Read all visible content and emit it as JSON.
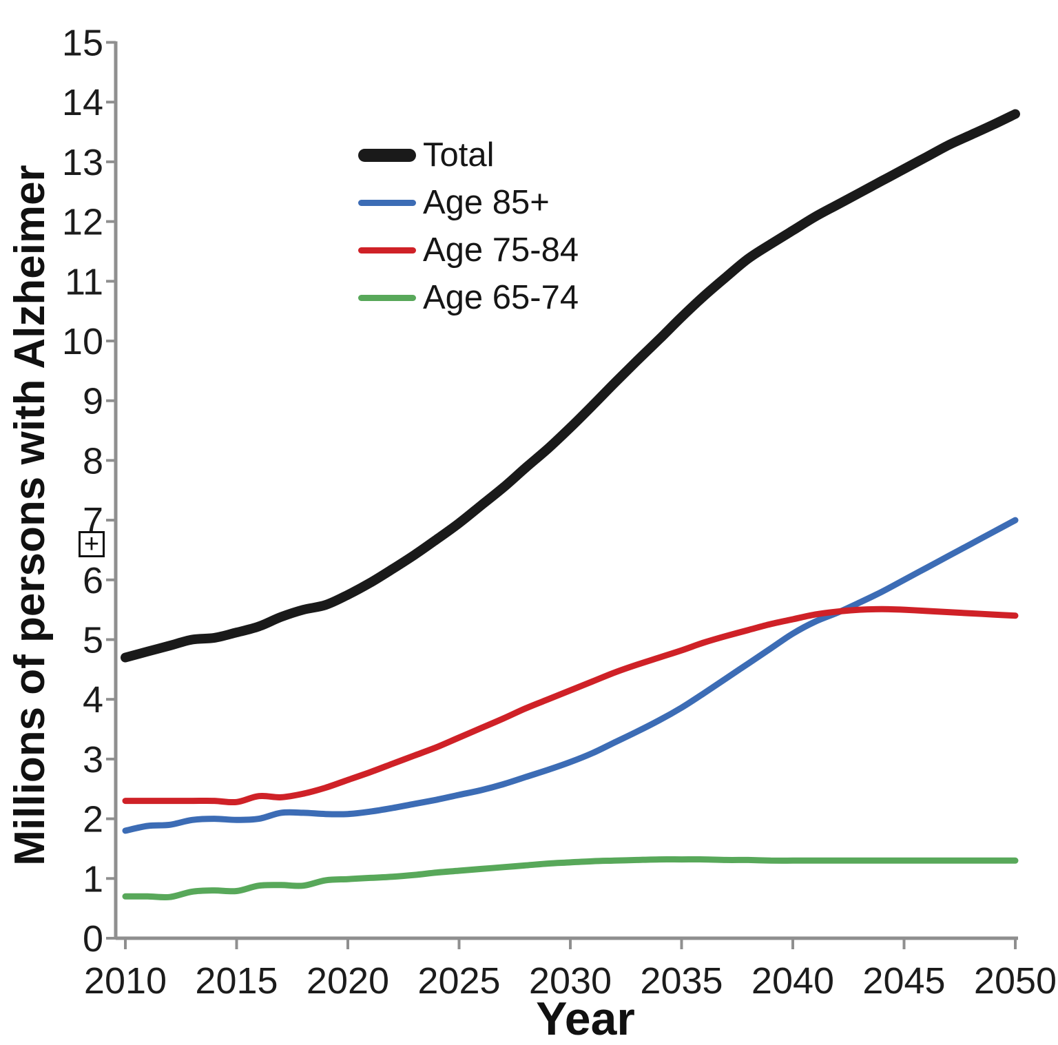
{
  "figure": {
    "expand_icon_symbol": "+"
  },
  "colors": {
    "background": "#ffffff",
    "axis": "#8f8f8f",
    "text": "#1c1c1c",
    "total": "#1a1a1a",
    "age_85_plus": "#3c6cb5",
    "age_75_84": "#cf2127",
    "age_65_74": "#58a85a"
  },
  "legend": {
    "items": [
      {
        "label": "Total",
        "color": "#1a1a1a",
        "thickness": 19
      },
      {
        "label": "Age 85+",
        "color": "#3c6cb5",
        "thickness": 9
      },
      {
        "label": "Age 75-84",
        "color": "#cf2127",
        "thickness": 9
      },
      {
        "label": "Age 65-74",
        "color": "#58a85a",
        "thickness": 9
      }
    ]
  },
  "chart_data": {
    "type": "line",
    "title": "",
    "xlabel": "Year",
    "ylabel": "Millions of persons with Alzheimer",
    "xlim": [
      2010,
      2050
    ],
    "ylim": [
      0,
      15
    ],
    "grid": false,
    "legend_position": "upper-left-inside",
    "x_ticks": [
      2010,
      2015,
      2020,
      2025,
      2030,
      2035,
      2040,
      2045,
      2050
    ],
    "y_ticks": [
      0,
      1,
      2,
      3,
      4,
      5,
      6,
      7,
      8,
      9,
      10,
      11,
      12,
      13,
      14,
      15
    ],
    "x": [
      2010,
      2011,
      2012,
      2013,
      2014,
      2015,
      2016,
      2017,
      2018,
      2019,
      2020,
      2021,
      2022,
      2023,
      2024,
      2025,
      2026,
      2027,
      2028,
      2029,
      2030,
      2031,
      2032,
      2033,
      2034,
      2035,
      2036,
      2037,
      2038,
      2039,
      2040,
      2041,
      2042,
      2043,
      2044,
      2045,
      2046,
      2047,
      2048,
      2049,
      2050
    ],
    "series": [
      {
        "name": "Age 65-74",
        "color": "#58a85a",
        "width": 9,
        "values": [
          0.7,
          0.7,
          0.69,
          0.78,
          0.8,
          0.79,
          0.88,
          0.89,
          0.88,
          0.97,
          0.99,
          1.01,
          1.03,
          1.06,
          1.1,
          1.13,
          1.16,
          1.19,
          1.22,
          1.25,
          1.27,
          1.29,
          1.3,
          1.31,
          1.32,
          1.32,
          1.32,
          1.31,
          1.31,
          1.3,
          1.3,
          1.3,
          1.3,
          1.3,
          1.3,
          1.3,
          1.3,
          1.3,
          1.3,
          1.3,
          1.3
        ]
      },
      {
        "name": "Age 85+",
        "color": "#3c6cb5",
        "width": 9,
        "values": [
          1.8,
          1.88,
          1.9,
          1.98,
          2.0,
          1.98,
          2.0,
          2.1,
          2.1,
          2.08,
          2.08,
          2.12,
          2.18,
          2.25,
          2.32,
          2.4,
          2.48,
          2.58,
          2.7,
          2.82,
          2.95,
          3.1,
          3.28,
          3.46,
          3.65,
          3.86,
          4.1,
          4.35,
          4.6,
          4.85,
          5.1,
          5.3,
          5.45,
          5.62,
          5.8,
          6.0,
          6.2,
          6.4,
          6.6,
          6.8,
          7.0
        ]
      },
      {
        "name": "Age 75-84",
        "color": "#cf2127",
        "width": 9,
        "values": [
          2.3,
          2.3,
          2.3,
          2.3,
          2.3,
          2.28,
          2.38,
          2.36,
          2.42,
          2.52,
          2.65,
          2.78,
          2.92,
          3.06,
          3.2,
          3.36,
          3.52,
          3.68,
          3.85,
          4.0,
          4.15,
          4.3,
          4.45,
          4.58,
          4.7,
          4.82,
          4.95,
          5.06,
          5.16,
          5.26,
          5.34,
          5.42,
          5.47,
          5.5,
          5.51,
          5.5,
          5.48,
          5.46,
          5.44,
          5.42,
          5.4
        ]
      },
      {
        "name": "Total",
        "color": "#1a1a1a",
        "width": 14,
        "values": [
          4.7,
          4.8,
          4.9,
          5.0,
          5.03,
          5.12,
          5.22,
          5.38,
          5.5,
          5.58,
          5.75,
          5.95,
          6.18,
          6.42,
          6.68,
          6.95,
          7.25,
          7.55,
          7.88,
          8.2,
          8.55,
          8.92,
          9.3,
          9.67,
          10.03,
          10.4,
          10.75,
          11.07,
          11.38,
          11.62,
          11.85,
          12.08,
          12.28,
          12.48,
          12.68,
          12.88,
          13.08,
          13.28,
          13.45,
          13.62,
          13.8
        ]
      }
    ]
  }
}
